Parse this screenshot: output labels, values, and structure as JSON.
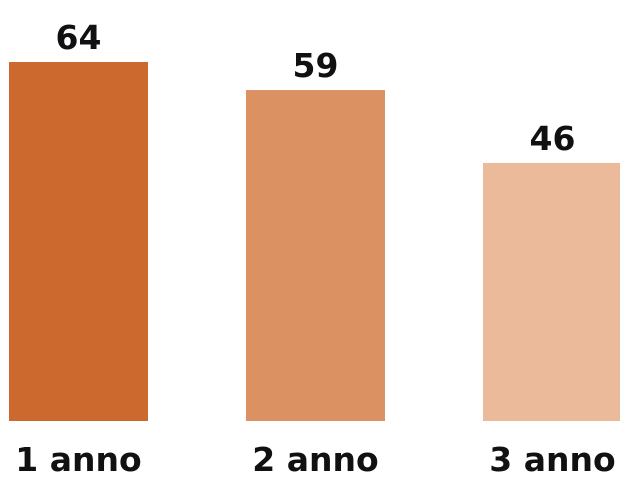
{
  "chart_data": {
    "type": "bar",
    "categories": [
      "1 anno",
      "2 anno",
      "3 anno"
    ],
    "values": [
      64,
      59,
      46
    ],
    "colors": [
      "#cc692e",
      "#dc9163",
      "#ebba9b"
    ],
    "title": "",
    "xlabel": "",
    "ylabel": "",
    "ylim": [
      0,
      64
    ],
    "grid": false,
    "data_labels": true
  }
}
